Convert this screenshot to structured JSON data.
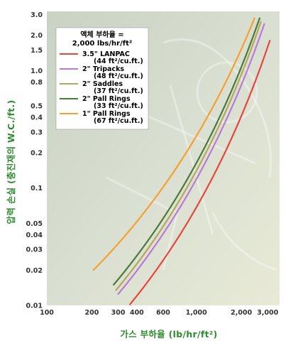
{
  "chart_data": {
    "type": "line",
    "xlabel": "가스 부하율 (lb/hr/ft²)",
    "ylabel": "압력 손실 (충진재의 W.C./ft.)",
    "x_scale": "log",
    "y_scale": "log",
    "xlim": [
      100,
      3600
    ],
    "ylim": [
      0.01,
      3.2
    ],
    "x_ticks": [
      100,
      200,
      300,
      400,
      600,
      1000,
      2000,
      3000
    ],
    "x_tick_labels": [
      "100",
      "200",
      "300",
      "400",
      "600",
      "1,000",
      "2,000",
      "3,000"
    ],
    "y_ticks": [
      0.01,
      0.02,
      0.03,
      0.04,
      0.05,
      0.1,
      0.2,
      0.3,
      0.4,
      0.5,
      0.8,
      1.0,
      1.5,
      2.0,
      3.0
    ],
    "y_tick_labels": [
      "0.01",
      "0.02",
      "0.03",
      "0.04",
      "0.05",
      "0.1",
      "0.2",
      "0.3",
      "0.4",
      "0.5",
      "0.8",
      "1.0",
      "1.5",
      "2.0",
      "3.0"
    ],
    "legend": {
      "title_line1": "액체 부하율 =",
      "title_line2": "2,000 lbs/hr/ft²",
      "placement": "top-left"
    },
    "series": [
      {
        "name": "3.5\" LANPAC",
        "spec": "(44 ft²/cu.ft.)",
        "color": "#e8453c",
        "x": [
          360,
          3100
        ],
        "y": [
          0.0102,
          1.8
        ]
      },
      {
        "name": "2\" Tripacks",
        "spec": "(48 ft²/cu.ft.)",
        "color": "#b97ad8",
        "x": [
          300,
          2850
        ],
        "y": [
          0.0125,
          2.5
        ]
      },
      {
        "name": "2\" Saddles",
        "spec": "(37 ft²/cu.ft.)",
        "color": "#b6a65e",
        "x": [
          290,
          2700
        ],
        "y": [
          0.0135,
          2.6
        ]
      },
      {
        "name": "2\" Pall Rings",
        "spec": "(33 ft²/cu.ft.)",
        "color": "#4a7a3a",
        "x": [
          280,
          2650
        ],
        "y": [
          0.015,
          2.8
        ]
      },
      {
        "name": "1\" Pall Rings",
        "spec": "(67 ft²/cu.ft.)",
        "color": "#f5a030",
        "x": [
          205,
          2450
        ],
        "y": [
          0.02,
          2.8
        ]
      }
    ]
  }
}
